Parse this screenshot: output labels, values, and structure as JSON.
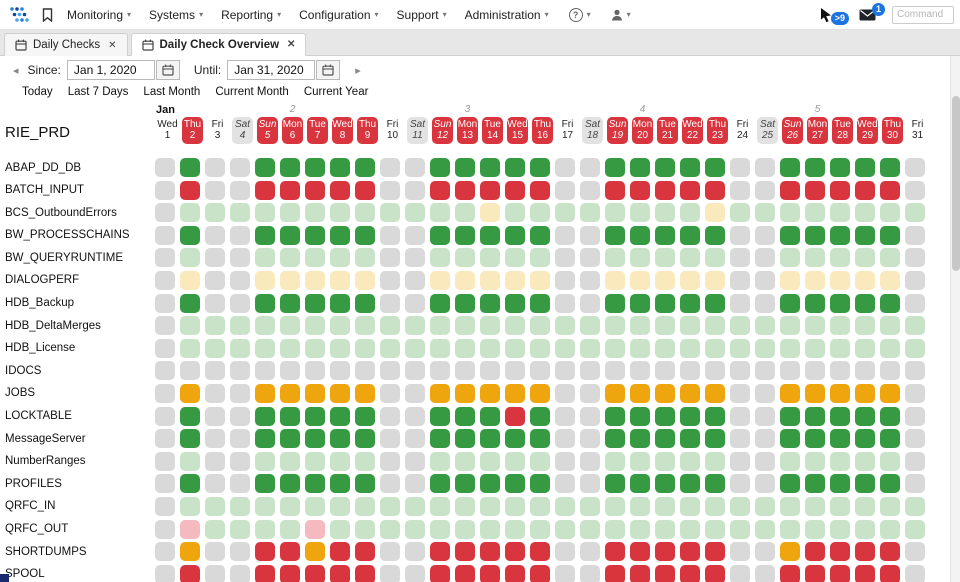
{
  "nav": {
    "menus": [
      "Monitoring",
      "Systems",
      "Reporting",
      "Configuration",
      "Support",
      "Administration"
    ],
    "pointer_badge": ">9",
    "mail_badge": "1",
    "command_placeholder": "Command"
  },
  "icons": {
    "caret": "▾",
    "close": "✕",
    "prev": "◂",
    "next": "▸",
    "help": "?"
  },
  "tabs": [
    {
      "label": "Daily Checks",
      "active": false
    },
    {
      "label": "Daily Check Overview",
      "active": true
    }
  ],
  "toolbar": {
    "since_label": "Since:",
    "since_value": "Jan 1, 2020",
    "until_label": "Until:",
    "until_value": "Jan 31, 2020",
    "quick_links": [
      "Today",
      "Last 7 Days",
      "Last Month",
      "Current Month",
      "Current Year"
    ]
  },
  "grid": {
    "system_label": "RIE_PRD",
    "month_label": "Jan",
    "week_numbers": [
      {
        "col": 5,
        "label": "2"
      },
      {
        "col": 12,
        "label": "3"
      },
      {
        "col": 19,
        "label": "4"
      },
      {
        "col": 26,
        "label": "5"
      }
    ],
    "status_colors": {
      "G": "#359a41",
      "R": "#d8353f",
      "g": "#c9e3c9",
      "y": "#fae9bd",
      "O": "#efa50e",
      "p": "#f5bac0",
      "-": "#d9d9d9"
    },
    "days": [
      {
        "name": "Wed",
        "num": "1",
        "type": "plain"
      },
      {
        "name": "Thu",
        "num": "2",
        "type": "work"
      },
      {
        "name": "Fri",
        "num": "3",
        "type": "plain"
      },
      {
        "name": "Sat",
        "num": "4",
        "type": "sat"
      },
      {
        "name": "Sun",
        "num": "5",
        "type": "sun"
      },
      {
        "name": "Mon",
        "num": "6",
        "type": "work"
      },
      {
        "name": "Tue",
        "num": "7",
        "type": "work"
      },
      {
        "name": "Wed",
        "num": "8",
        "type": "work"
      },
      {
        "name": "Thu",
        "num": "9",
        "type": "work"
      },
      {
        "name": "Fri",
        "num": "10",
        "type": "plain"
      },
      {
        "name": "Sat",
        "num": "11",
        "type": "sat"
      },
      {
        "name": "Sun",
        "num": "12",
        "type": "sun"
      },
      {
        "name": "Mon",
        "num": "13",
        "type": "work"
      },
      {
        "name": "Tue",
        "num": "14",
        "type": "work"
      },
      {
        "name": "Wed",
        "num": "15",
        "type": "work"
      },
      {
        "name": "Thu",
        "num": "16",
        "type": "work"
      },
      {
        "name": "Fri",
        "num": "17",
        "type": "plain"
      },
      {
        "name": "Sat",
        "num": "18",
        "type": "sat"
      },
      {
        "name": "Sun",
        "num": "19",
        "type": "sun"
      },
      {
        "name": "Mon",
        "num": "20",
        "type": "work"
      },
      {
        "name": "Tue",
        "num": "21",
        "type": "work"
      },
      {
        "name": "Wed",
        "num": "22",
        "type": "work"
      },
      {
        "name": "Thu",
        "num": "23",
        "type": "work"
      },
      {
        "name": "Fri",
        "num": "24",
        "type": "plain"
      },
      {
        "name": "Sat",
        "num": "25",
        "type": "sat"
      },
      {
        "name": "Sun",
        "num": "26",
        "type": "sun"
      },
      {
        "name": "Mon",
        "num": "27",
        "type": "work"
      },
      {
        "name": "Tue",
        "num": "28",
        "type": "work"
      },
      {
        "name": "Wed",
        "num": "29",
        "type": "work"
      },
      {
        "name": "Thu",
        "num": "30",
        "type": "work"
      },
      {
        "name": "Fri",
        "num": "31",
        "type": "plain"
      }
    ],
    "rows": [
      {
        "label": "ABAP_DD_DB",
        "cells": "-G--GGGGG--GGGGG--GGGGG--GGGGG-"
      },
      {
        "label": "BATCH_INPUT",
        "cells": "-R--RRRRR--RRRRR--RRRRR--RRRRR-"
      },
      {
        "label": "BCS_OutboundErrors",
        "cells": "-ggggggggggggyggggggggygggggggg"
      },
      {
        "label": "BW_PROCESSCHAINS",
        "cells": "-G--GGGGG--GGGGG--GGGGG--GGGGG-"
      },
      {
        "label": "BW_QUERYRUNTIME",
        "cells": "-g--ggggg--ggggg--ggggg--ggggg-"
      },
      {
        "label": "DIALOGPERF",
        "cells": "-y--yyyyy--yyyyy--yyyyy--yyyyy-"
      },
      {
        "label": "HDB_Backup",
        "cells": "-G--GGGGG--GGGGG--GGGGG--GGGGG-"
      },
      {
        "label": "HDB_DeltaMerges",
        "cells": "-gggggggggggggggggggggggggggggg"
      },
      {
        "label": "HDB_License",
        "cells": "-gggggggggggggggggggggggggggggg"
      },
      {
        "label": "IDOCS",
        "cells": "-------------------------------"
      },
      {
        "label": "JOBS",
        "cells": "-O--OOOOO--OOOOO--OOOOO--OOOOO-"
      },
      {
        "label": "LOCKTABLE",
        "cells": "-G--GGGGG--GGGRG--GGGGG--GGGGG-"
      },
      {
        "label": "MessageServer",
        "cells": "-G--GGGGG--GGGGG--GGGGG--GGGGG-"
      },
      {
        "label": "NumberRanges",
        "cells": "-g--ggggg--ggggg--ggggg--ggggg-"
      },
      {
        "label": "PROFILES",
        "cells": "-G--GGGGG--GGGGG--GGGGG--GGGGG-"
      },
      {
        "label": "QRFC_IN",
        "cells": "-gggggggggggggggggggggggggggggg"
      },
      {
        "label": "QRFC_OUT",
        "cells": "-pggggpgggggggggggggggggggggggg"
      },
      {
        "label": "SHORTDUMPS",
        "cells": "-O--RRORR--RRRRR--RRRRR--ORRRR-"
      },
      {
        "label": "SPOOL",
        "cells": "-R--RRRRR--RRRRR--RRRRR--RRRRR-"
      }
    ]
  }
}
